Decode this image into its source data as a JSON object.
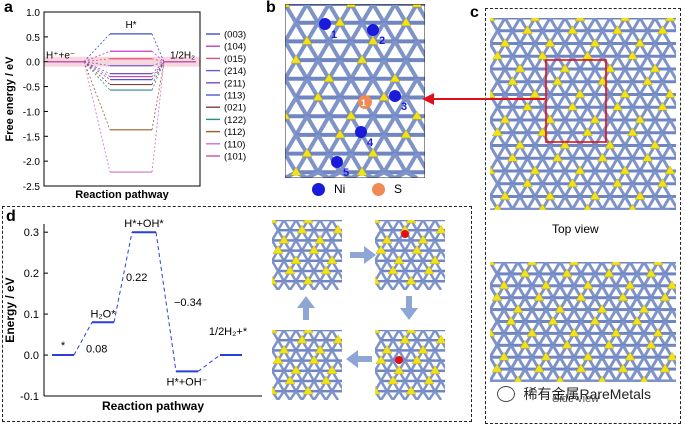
{
  "figure": {
    "panel_a": {
      "letter": "a",
      "ylabel": "Free energy / eV",
      "xlabel": "Reaction pathway",
      "start_label": "H⁺+e⁻",
      "mid_label": "H*",
      "end_label": "1/2H₂",
      "legend": [
        "(003)",
        "(104)",
        "(015)",
        "(214)",
        "(211)",
        "(113)",
        "(021)",
        "(122)",
        "(112)",
        "(110)",
        "(101)"
      ]
    },
    "panel_b": {
      "letter": "b",
      "site_labels": [
        "1",
        "2",
        "3",
        "4",
        "5"
      ],
      "legend_ni": "Ni",
      "legend_s": "S"
    },
    "panel_c": {
      "letter": "c",
      "top_view": "Top view",
      "side_view": "Side view"
    },
    "panel_d": {
      "letter": "d",
      "ylabel": "Energy / eV",
      "xlabel": "Reaction pathway",
      "state_labels": [
        "*",
        "H₂O*",
        "H*+OH*",
        "H*+OH⁻",
        "1/2H₂+*"
      ],
      "step_labels": [
        "0.08",
        "0.22",
        "−0.34"
      ]
    },
    "watermark": "稀有金属RareMetals"
  },
  "chart_data": [
    {
      "type": "line",
      "panel": "a",
      "xlabel": "Reaction pathway",
      "ylabel": "Free energy / eV",
      "ylim": [
        -2.5,
        1.0
      ],
      "yticks": [
        1.0,
        0.5,
        0.0,
        -0.5,
        -1.0,
        -1.5,
        -2.0,
        -2.5
      ],
      "grid": false,
      "legend_position": "right",
      "states": [
        "H⁺+e⁻",
        "H*",
        "1/2H₂"
      ],
      "series": [
        {
          "name": "(003)",
          "color": "#3b4fc4",
          "values": [
            0,
            0.56,
            0
          ]
        },
        {
          "name": "(104)",
          "color": "#c23fc0",
          "values": [
            0,
            0.21,
            0
          ]
        },
        {
          "name": "(015)",
          "color": "#e0507a",
          "values": [
            0,
            0.06,
            0
          ]
        },
        {
          "name": "(214)",
          "color": "#6a5cc8",
          "values": [
            0,
            -0.08,
            0
          ]
        },
        {
          "name": "(211)",
          "color": "#7e4fc0",
          "values": [
            0,
            -0.24,
            0
          ]
        },
        {
          "name": "(113)",
          "color": "#4b5bd0",
          "values": [
            0,
            -0.36,
            0
          ]
        },
        {
          "name": "(021)",
          "color": "#8a3b3b",
          "values": [
            0,
            -0.46,
            0
          ]
        },
        {
          "name": "(122)",
          "color": "#2e8b8b",
          "values": [
            0,
            -0.57,
            0
          ]
        },
        {
          "name": "(112)",
          "color": "#a05a2c",
          "values": [
            0,
            -1.37,
            0
          ]
        },
        {
          "name": "(110)",
          "color": "#d070c8",
          "values": [
            0,
            -2.22,
            0
          ]
        },
        {
          "name": "(101)",
          "color": "#c84fb0",
          "values": [
            0,
            -0.3,
            0
          ]
        }
      ]
    },
    {
      "type": "line",
      "panel": "d",
      "xlabel": "Reaction pathway",
      "ylabel": "Energy / eV",
      "ylim": [
        -0.1,
        0.32
      ],
      "yticks": [
        0.3,
        0.2,
        0.1,
        0.0,
        -0.1
      ],
      "grid": false,
      "states": [
        "*",
        "H₂O*",
        "H*+OH*",
        "H*+OH⁻",
        "1/2H₂+*"
      ],
      "values": [
        0.0,
        0.08,
        0.3,
        -0.04,
        0.0
      ],
      "steps": [
        "0.08",
        "0.22",
        "−0.34"
      ],
      "color": "#2a3fd6"
    }
  ]
}
